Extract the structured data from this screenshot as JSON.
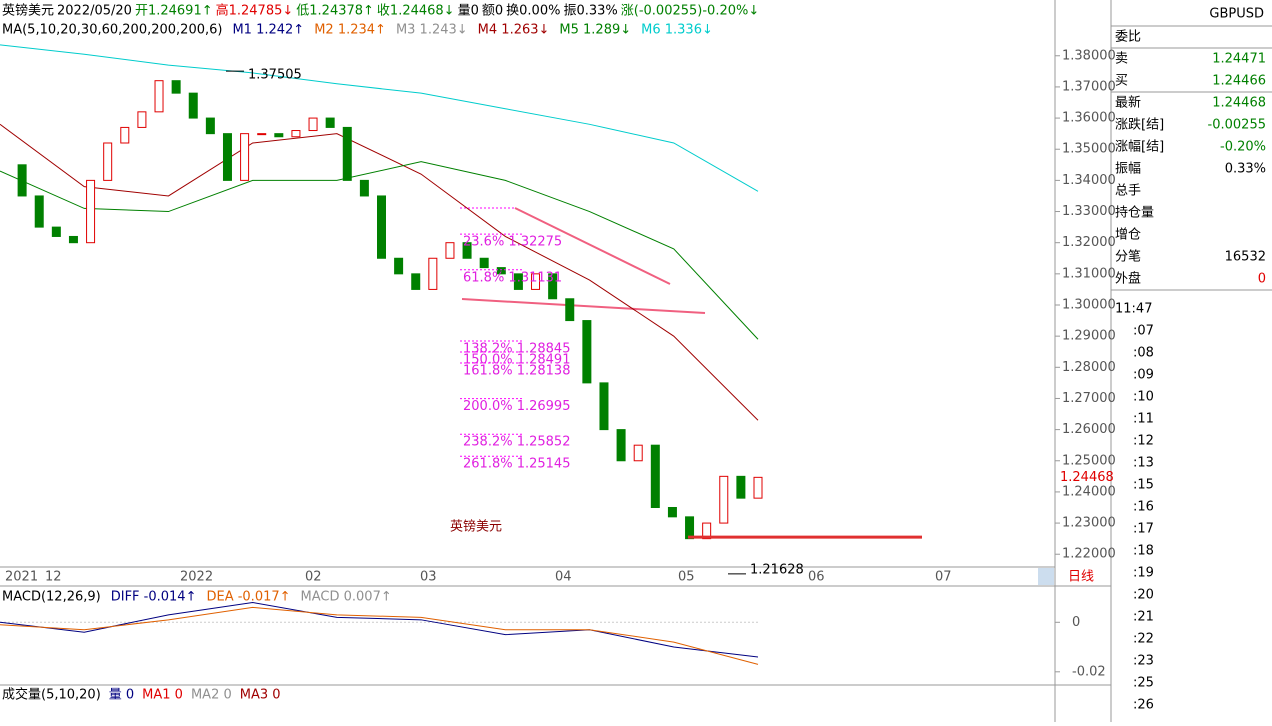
{
  "header": {
    "segments": [
      {
        "text": "英镑美元",
        "color": "#000000"
      },
      {
        "text": "2022/05/20",
        "color": "#000000"
      },
      {
        "text": "开1.24691↑",
        "color": "#008000"
      },
      {
        "text": "高1.24785↓",
        "color": "#e00000"
      },
      {
        "text": "低1.24378↑",
        "color": "#008000"
      },
      {
        "text": "收1.24468↓",
        "color": "#008000"
      },
      {
        "text": "量0",
        "color": "#000000"
      },
      {
        "text": "额0",
        "color": "#000000"
      },
      {
        "text": "换0.00%",
        "color": "#000000"
      },
      {
        "text": "振0.33%",
        "color": "#000000"
      },
      {
        "text": "涨(-0.00255)-0.20%↓",
        "color": "#008000"
      }
    ]
  },
  "ma_legend": [
    {
      "text": "MA(5,10,20,30,60,200,200,200,6)",
      "color": "#000000"
    },
    {
      "text": "M1 1.242↑",
      "color": "#000080"
    },
    {
      "text": "M2 1.234↑",
      "color": "#e06000"
    },
    {
      "text": "M3 1.243↓",
      "color": "#909090"
    },
    {
      "text": "M4 1.263↓",
      "color": "#a00000"
    },
    {
      "text": "M5 1.289↓",
      "color": "#008000"
    },
    {
      "text": "M6 1.336↓",
      "color": "#00cccc"
    }
  ],
  "chart_data": {
    "type": "candlestick",
    "title": "英镑美元",
    "closes": [
      1.345,
      1.335,
      1.325,
      1.322,
      1.32,
      1.34,
      1.352,
      1.357,
      1.362,
      1.372,
      1.368,
      1.36,
      1.355,
      1.34,
      1.355,
      1.355,
      1.354,
      1.356,
      1.36,
      1.357,
      1.34,
      1.335,
      1.315,
      1.31,
      1.305,
      1.315,
      1.32,
      1.315,
      1.312,
      1.31,
      1.305,
      1.31,
      1.302,
      1.295,
      1.275,
      1.26,
      1.25,
      1.255,
      1.235,
      1.232,
      1.225,
      1.23,
      1.245,
      1.238,
      1.24468
    ],
    "up_color": "#e00000",
    "down_color": "#008000",
    "series": [
      {
        "name": "M4",
        "color": "#a00000",
        "values": [
          1.358,
          1.338,
          1.335,
          1.352,
          1.355,
          1.342,
          1.322,
          1.308,
          1.29,
          1.263
        ]
      },
      {
        "name": "M5",
        "color": "#008000",
        "values": [
          1.343,
          1.331,
          1.33,
          1.34,
          1.34,
          1.346,
          1.34,
          1.33,
          1.318,
          1.289
        ]
      },
      {
        "name": "M6",
        "color": "#00cccc",
        "values": [
          1.3835,
          1.3805,
          1.377,
          1.3745,
          1.371,
          1.368,
          1.363,
          1.358,
          1.352,
          1.3365
        ]
      }
    ],
    "ylim": [
      1.2159,
      1.3979
    ],
    "yticks": [
      {
        "value": 1.38,
        "label": "1.38000"
      },
      {
        "value": 1.37,
        "label": "1.37000"
      },
      {
        "value": 1.36,
        "label": "1.36000"
      },
      {
        "value": 1.35,
        "label": "1.35000"
      },
      {
        "value": 1.34,
        "label": "1.34000"
      },
      {
        "value": 1.33,
        "label": "1.33000"
      },
      {
        "value": 1.32,
        "label": "1.32000"
      },
      {
        "value": 1.31,
        "label": "1.31000"
      },
      {
        "value": 1.3,
        "label": "1.30000"
      },
      {
        "value": 1.29,
        "label": "1.29000"
      },
      {
        "value": 1.28,
        "label": "1.28000"
      },
      {
        "value": 1.27,
        "label": "1.27000"
      },
      {
        "value": 1.26,
        "label": "1.26000"
      },
      {
        "value": 1.25,
        "label": "1.25000"
      },
      {
        "value": 1.24,
        "label": "1.24000"
      },
      {
        "value": 1.23,
        "label": "1.23000"
      },
      {
        "value": 1.22,
        "label": "1.22000"
      }
    ],
    "last_price": {
      "value": 1.24468,
      "label": "1.24468"
    },
    "high_label": {
      "value": 1.37505,
      "label": "1.37505"
    },
    "low_label": {
      "value": 1.21628,
      "label": "1.21628"
    },
    "support_line": 1.2255,
    "fib_levels": [
      {
        "value": 1.32275,
        "label": "23.6% 1.32275"
      },
      {
        "value": 1.31131,
        "label": "61.8% 1.31131"
      },
      {
        "value": 1.28845,
        "label": "138.2% 1.28845"
      },
      {
        "value": 1.28491,
        "label": "150.0% 1.28491"
      },
      {
        "value": 1.28138,
        "label": "161.8% 1.28138"
      },
      {
        "value": 1.26995,
        "label": "200.0% 1.26995"
      },
      {
        "value": 1.25852,
        "label": "238.2% 1.25852"
      },
      {
        "value": 1.25145,
        "label": "261.8% 1.25145"
      }
    ],
    "x_labels": [
      "2021",
      "12",
      "2022",
      "02",
      "03",
      "04",
      "05",
      "06",
      "07"
    ],
    "period": "日线"
  },
  "macd": {
    "legend": [
      {
        "text": "MACD(12,26,9)",
        "color": "#000000"
      },
      {
        "text": "DIFF -0.014↑",
        "color": "#000080"
      },
      {
        "text": "DEA -0.017↑",
        "color": "#e06000"
      },
      {
        "text": "MACD 0.007↑",
        "color": "#909090"
      }
    ],
    "series": [
      {
        "name": "DIFF",
        "color": "#000080",
        "values": [
          0.0,
          -0.004,
          0.003,
          0.008,
          0.002,
          0.001,
          -0.005,
          -0.003,
          -0.01,
          -0.014
        ]
      },
      {
        "name": "DEA",
        "color": "#e06000",
        "values": [
          -0.001,
          -0.003,
          0.001,
          0.006,
          0.003,
          0.002,
          -0.003,
          -0.003,
          -0.008,
          -0.017
        ]
      }
    ],
    "ylim": [
      0.01466,
      -0.02533
    ],
    "yticks": [
      0,
      -0.02
    ]
  },
  "volume": {
    "legend": [
      {
        "text": "成交量(5,10,20)",
        "color": "#000000"
      },
      {
        "text": "量 0",
        "color": "#000080"
      },
      {
        "text": "MA1 0",
        "color": "#e00000"
      },
      {
        "text": "MA2 0",
        "color": "#909090"
      },
      {
        "text": "MA3 0",
        "color": "#a00000"
      }
    ]
  },
  "panel": {
    "symbol": "GBPUSD",
    "rows": [
      {
        "label": "委比",
        "value": null,
        "color": "#000000"
      },
      {
        "label": "卖",
        "value": "1.24471",
        "color": "#008000"
      },
      {
        "label": "买",
        "value": "1.24466",
        "color": "#008000"
      },
      {
        "label": "最新",
        "value": "1.24468",
        "color": "#008000"
      },
      {
        "label": "涨跌[结]",
        "value": "-0.00255",
        "color": "#008000"
      },
      {
        "label": "涨幅[结]",
        "value": "-0.20%",
        "color": "#008000"
      },
      {
        "label": "振幅",
        "value": "0.33%",
        "color": "#000000"
      },
      {
        "label": "总手",
        "value": null,
        "color": "#000000"
      },
      {
        "label": "持仓量",
        "value": null,
        "color": "#000000"
      },
      {
        "label": "增仓",
        "value": null,
        "color": "#000000"
      },
      {
        "label": "分笔",
        "value": "16532",
        "color": "#000000"
      },
      {
        "label": "外盘",
        "value": "0",
        "color": "#e00000"
      }
    ],
    "times": [
      "11:47",
      ":07",
      ":08",
      ":09",
      ":10",
      ":11",
      ":12",
      ":13",
      ":15",
      ":16",
      ":17",
      ":18",
      ":19",
      ":20",
      ":21",
      ":22",
      ":23",
      ":25",
      ":26"
    ]
  }
}
